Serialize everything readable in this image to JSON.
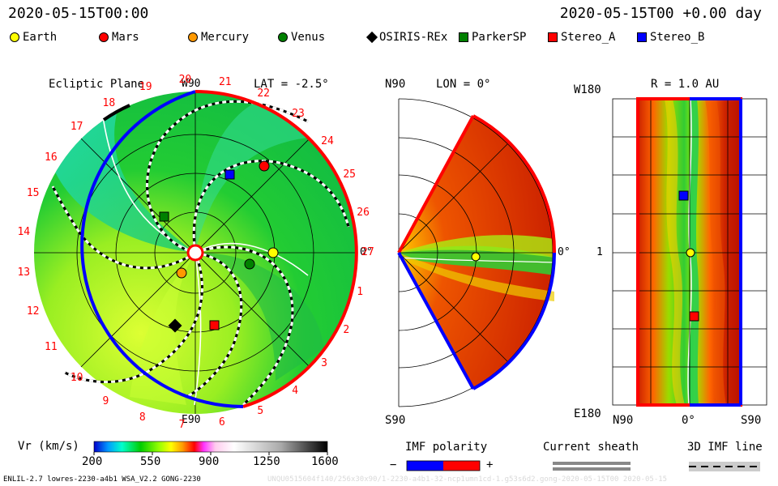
{
  "header": {
    "timestamp": "2020-05-15T00:00",
    "elapsed": "2020-05-15T00 +0.00 day"
  },
  "legend": [
    {
      "label": "Earth",
      "shape": "circle",
      "color": "#ffff00"
    },
    {
      "label": "Mars",
      "shape": "circle",
      "color": "#ff0000"
    },
    {
      "label": "Mercury",
      "shape": "circle",
      "color": "#ff9900"
    },
    {
      "label": "Venus",
      "shape": "circle",
      "color": "#008000"
    },
    {
      "label": "OSIRIS-REx",
      "shape": "diamond",
      "color": "#000000"
    },
    {
      "label": "ParkerSP",
      "shape": "square",
      "color": "#008000"
    },
    {
      "label": "Stereo_A",
      "shape": "square",
      "color": "#ff0000"
    },
    {
      "label": "Stereo_B",
      "shape": "square",
      "color": "#0000ff"
    }
  ],
  "ecliptic": {
    "title": "Ecliptic Plane",
    "lat": "LAT = -2.5°",
    "top": "W90",
    "bottom": "E90",
    "right": "0°",
    "carrington": [
      "1",
      "2",
      "3",
      "4",
      "5",
      "6",
      "7",
      "8",
      "9",
      "10",
      "11",
      "12",
      "13",
      "14",
      "15",
      "16",
      "17",
      "18",
      "19",
      "20",
      "21",
      "22",
      "23",
      "24",
      "25",
      "26",
      "27"
    ]
  },
  "meridional": {
    "lon": "LON = 0°",
    "north": "N90",
    "south": "S90",
    "right": "0°"
  },
  "projection": {
    "radius": "R = 1.0 AU",
    "top": "W180",
    "bottom": "E180",
    "left": "1",
    "x_left": "N90",
    "x_mid": "0°",
    "x_right": "S90"
  },
  "colorbar": {
    "title": "Vr (km/s)",
    "ticks": [
      "200",
      "550",
      "900",
      "1250",
      "1600"
    ],
    "stops": [
      "#0000cc",
      "#0099ff",
      "#00ffcc",
      "#00cc00",
      "#99ff00",
      "#ffff00",
      "#ff9900",
      "#ff0000",
      "#ff33ff",
      "#ff99cc",
      "#ffffff",
      "#cccccc",
      "#888888",
      "#333333",
      "#000000"
    ]
  },
  "imf": {
    "title": "IMF polarity",
    "minus": "−",
    "plus": "+",
    "neg_color": "#0000ff",
    "pos_color": "#ff0000"
  },
  "current_sheath": {
    "title": "Current sheath"
  },
  "imf_line": {
    "title": "3D IMF line"
  },
  "footer": {
    "left": "ENLIL-2.7 lowres-2230-a4b1 WSA_V2.2 GONG-2230",
    "right": "UNQU0515604f140/256x30x90/1-2230-a4b1-32-ncp1umn1cd-1.g53s6d2.gong-2020-05-15T00   2020-05-15"
  },
  "chart_data": {
    "type": "heatmap",
    "title": "Vr (km/s)",
    "colorbar_range": [
      200,
      1600
    ],
    "ecliptic_objects": [
      "Earth",
      "Mars",
      "Mercury",
      "Venus",
      "OSIRIS-REx",
      "ParkerSP",
      "Stereo_A",
      "Stereo_B"
    ]
  }
}
